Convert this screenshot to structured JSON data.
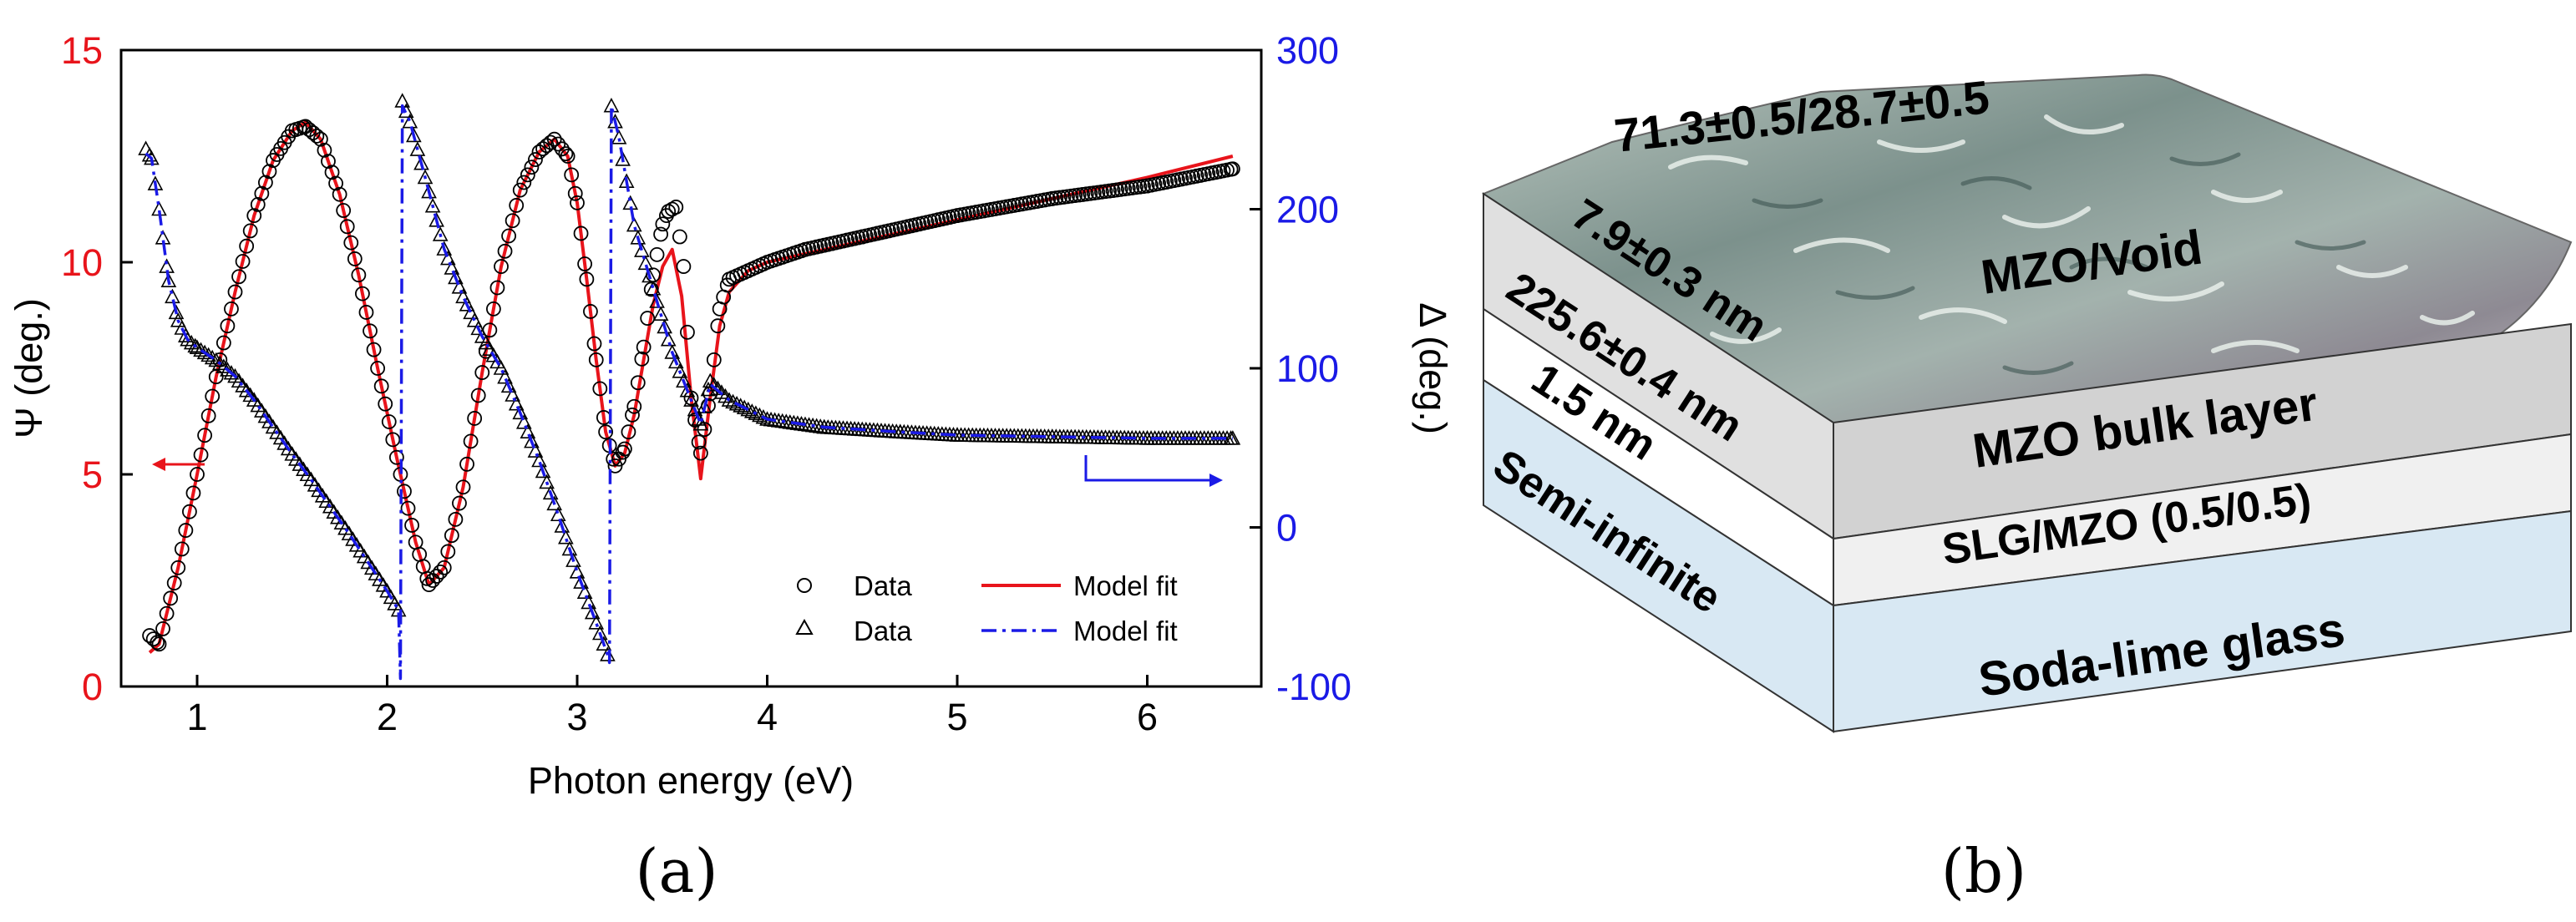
{
  "colors": {
    "psi": "#e8141b",
    "delta": "#1a1ae6",
    "data_marker": "#000000",
    "fit_delta": "#1a1ae6"
  },
  "chart_data": {
    "type": "line",
    "xlabel": "Photon energy (eV)",
    "ylabel_left": "Ψ (deg.)",
    "ylabel_right": "Δ (deg.)",
    "xlim": [
      0.6,
      6.6
    ],
    "ylim_left": [
      0,
      15
    ],
    "ylim_right": [
      -100,
      300
    ],
    "xticks": [
      "1",
      "2",
      "3",
      "4",
      "5",
      "6"
    ],
    "yticks_left": [
      "0",
      "5",
      "10",
      "15"
    ],
    "yticks_right": [
      "-100",
      "0",
      "100",
      "200",
      "300"
    ],
    "legend": [
      {
        "marker": "circle",
        "label": "Data"
      },
      {
        "line": "solid-red",
        "label": "Model fit"
      },
      {
        "marker": "triangle",
        "label": "Data"
      },
      {
        "line": "dashdot-blue",
        "label": "Model fit"
      }
    ],
    "series": [
      {
        "name": "Ψ fit",
        "axis": "left",
        "style": "solid",
        "x": [
          0.75,
          0.8,
          0.9,
          1.0,
          1.1,
          1.2,
          1.3,
          1.4,
          1.5,
          1.57,
          1.65,
          1.75,
          1.85,
          1.95,
          2.05,
          2.15,
          2.22,
          2.3,
          2.4,
          2.5,
          2.6,
          2.7,
          2.8,
          2.88,
          2.95,
          3.0,
          3.05,
          3.1,
          3.15,
          3.2,
          3.25,
          3.3,
          3.35,
          3.4,
          3.45,
          3.5,
          3.55,
          3.6,
          3.65,
          3.7,
          3.75,
          3.8,
          3.9,
          4.0,
          4.2,
          4.5,
          5.0,
          5.5,
          6.0,
          6.45
        ],
        "y": [
          0.8,
          1.0,
          2.8,
          5.0,
          7.3,
          9.3,
          11.1,
          12.4,
          13.1,
          13.3,
          12.9,
          11.6,
          9.7,
          7.5,
          5.4,
          3.4,
          2.4,
          2.8,
          4.7,
          7.4,
          9.9,
          11.7,
          12.6,
          12.9,
          12.5,
          11.4,
          9.6,
          7.7,
          6.0,
          5.2,
          5.5,
          6.4,
          7.7,
          9.0,
          9.9,
          10.3,
          9.2,
          6.8,
          4.9,
          6.8,
          8.5,
          9.3,
          9.8,
          10.0,
          10.2,
          10.5,
          11.0,
          11.5,
          12.0,
          12.5
        ]
      },
      {
        "name": "Ψ data",
        "axis": "left",
        "style": "circle",
        "x": [
          0.75,
          0.8,
          0.9,
          1.0,
          1.1,
          1.2,
          1.3,
          1.4,
          1.5,
          1.57,
          1.65,
          1.75,
          1.85,
          1.95,
          2.05,
          2.15,
          2.22,
          2.3,
          2.4,
          2.5,
          2.6,
          2.7,
          2.8,
          2.88,
          2.95,
          3.0,
          3.05,
          3.1,
          3.15,
          3.2,
          3.25,
          3.3,
          3.35,
          3.4,
          3.45,
          3.48,
          3.52,
          3.56,
          3.6,
          3.65,
          3.7,
          3.75,
          3.8,
          3.9,
          4.0,
          4.2,
          4.5,
          5.0,
          5.5,
          6.0,
          6.45
        ],
        "y": [
          1.2,
          1.0,
          2.8,
          5.0,
          7.3,
          9.3,
          11.1,
          12.4,
          13.1,
          13.2,
          12.9,
          11.6,
          9.7,
          7.5,
          5.4,
          3.4,
          2.4,
          2.8,
          4.7,
          7.4,
          9.9,
          11.7,
          12.6,
          12.9,
          12.5,
          11.4,
          9.6,
          7.7,
          6.0,
          5.2,
          5.6,
          6.6,
          8.0,
          9.7,
          10.9,
          11.2,
          11.3,
          9.9,
          6.8,
          5.5,
          6.9,
          8.9,
          9.6,
          9.8,
          10.0,
          10.3,
          10.6,
          11.1,
          11.5,
          11.8,
          12.2
        ]
      },
      {
        "name": "Δ fit",
        "axis": "right",
        "style": "dashdot",
        "x": [
          0.73,
          0.76,
          0.8,
          0.85,
          0.9,
          0.95,
          1.0,
          1.1,
          1.2,
          1.3,
          1.4,
          1.5,
          1.6,
          1.7,
          1.8,
          1.9,
          2.0,
          2.06,
          2.07,
          2.08,
          2.12,
          2.2,
          2.3,
          2.4,
          2.5,
          2.6,
          2.7,
          2.8,
          2.9,
          3.0,
          3.1,
          3.16,
          3.17,
          3.18,
          3.22,
          3.3,
          3.4,
          3.5,
          3.6,
          3.65,
          3.7,
          3.8,
          4.0,
          4.3,
          4.7,
          5.0,
          5.5,
          6.0,
          6.45
        ],
        "y": [
          235,
          232,
          200,
          155,
          130,
          118,
          113,
          105,
          95,
          80,
          63,
          46,
          30,
          13,
          -4,
          -22,
          -40,
          -52,
          -95,
          265,
          255,
          220,
          175,
          145,
          120,
          100,
          72,
          42,
          8,
          -28,
          -60,
          -80,
          -85,
          265,
          245,
          190,
          150,
          110,
          80,
          65,
          90,
          80,
          68,
          63,
          60,
          58,
          57,
          56,
          56
        ]
      },
      {
        "name": "Δ data",
        "axis": "right",
        "style": "triangle",
        "x": [
          0.73,
          0.76,
          0.8,
          0.85,
          0.9,
          0.95,
          1.0,
          1.1,
          1.2,
          1.3,
          1.4,
          1.5,
          1.6,
          1.7,
          1.8,
          1.9,
          2.0,
          2.06,
          2.08,
          2.12,
          2.2,
          2.3,
          2.4,
          2.5,
          2.6,
          2.7,
          2.8,
          2.9,
          3.0,
          3.1,
          3.16,
          3.18,
          3.22,
          3.3,
          3.4,
          3.5,
          3.6,
          3.65,
          3.7,
          3.8,
          4.0,
          4.3,
          4.7,
          5.0,
          5.5,
          6.0,
          6.45
        ],
        "y": [
          238,
          232,
          200,
          155,
          130,
          118,
          113,
          105,
          95,
          80,
          63,
          46,
          30,
          13,
          -4,
          -22,
          -40,
          -52,
          268,
          255,
          220,
          175,
          145,
          120,
          100,
          72,
          42,
          8,
          -28,
          -60,
          -80,
          265,
          245,
          190,
          150,
          110,
          80,
          65,
          92,
          80,
          68,
          63,
          60,
          58,
          57,
          56,
          56
        ]
      }
    ]
  },
  "panel_a": {
    "label": "(a)"
  },
  "panel_b": {
    "label": "(b)",
    "top_label": "71.3±0.5/28.7±0.5",
    "layers": [
      {
        "name": "MZO/Void",
        "thickness": "7.9±0.3 nm"
      },
      {
        "name": "MZO bulk layer",
        "thickness": "225.6±0.4 nm"
      },
      {
        "name": "SLG/MZO (0.5/0.5)",
        "thickness": "1.5 nm"
      },
      {
        "name": "Soda-lime glass",
        "thickness": "Semi-infinite"
      }
    ]
  }
}
